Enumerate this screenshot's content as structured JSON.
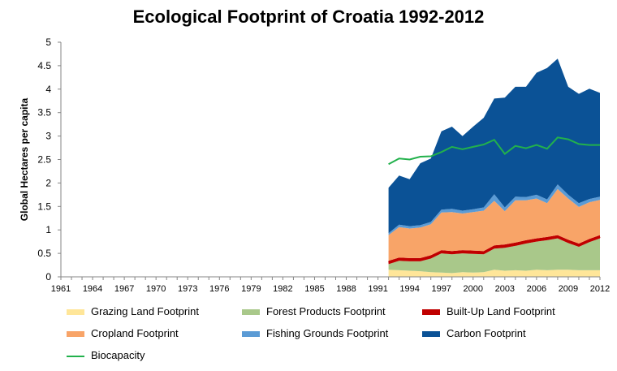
{
  "chart_data": {
    "type": "area",
    "title": "Ecological Footprint of Croatia 1992-2012",
    "xlabel": "",
    "ylabel": "Global Hectares per capita",
    "ylim": [
      0,
      5
    ],
    "yticks": [
      "0",
      "0.5",
      "1",
      "1.5",
      "2",
      "2.5",
      "3",
      "3.5",
      "4",
      "4.5",
      "5"
    ],
    "xtick_labels": [
      "1961",
      "1964",
      "1967",
      "1970",
      "1973",
      "1976",
      "1979",
      "1982",
      "1985",
      "1988",
      "1991",
      "1994",
      "1997",
      "2000",
      "2003",
      "2006",
      "2009",
      "2012"
    ],
    "xrange": [
      1961,
      2012
    ],
    "x": [
      1992,
      1993,
      1994,
      1995,
      1996,
      1997,
      1998,
      1999,
      2000,
      2001,
      2002,
      2003,
      2004,
      2005,
      2006,
      2007,
      2008,
      2009,
      2010,
      2011,
      2012
    ],
    "stacked_series": [
      {
        "name": "Grazing Land Footprint",
        "color": "#ffe699",
        "values": [
          0.15,
          0.14,
          0.13,
          0.12,
          0.1,
          0.09,
          0.08,
          0.1,
          0.09,
          0.1,
          0.15,
          0.13,
          0.14,
          0.13,
          0.15,
          0.14,
          0.15,
          0.15,
          0.14,
          0.14,
          0.14
        ]
      },
      {
        "name": "Forest Products Footprint",
        "color": "#a9c88a",
        "values": [
          0.12,
          0.2,
          0.2,
          0.21,
          0.29,
          0.41,
          0.4,
          0.4,
          0.4,
          0.38,
          0.45,
          0.49,
          0.52,
          0.58,
          0.6,
          0.64,
          0.67,
          0.57,
          0.5,
          0.6,
          0.68
        ]
      },
      {
        "name": "Built-Up Land Footprint",
        "color": "#c00000",
        "values": [
          0.07,
          0.07,
          0.07,
          0.07,
          0.07,
          0.07,
          0.07,
          0.07,
          0.07,
          0.07,
          0.07,
          0.07,
          0.07,
          0.07,
          0.07,
          0.07,
          0.07,
          0.07,
          0.07,
          0.07,
          0.07
        ]
      },
      {
        "name": "Cropland Footprint",
        "color": "#f8a468",
        "values": [
          0.55,
          0.65,
          0.63,
          0.65,
          0.66,
          0.8,
          0.83,
          0.78,
          0.82,
          0.86,
          0.95,
          0.71,
          0.9,
          0.85,
          0.85,
          0.72,
          0.98,
          0.88,
          0.78,
          0.78,
          0.75
        ]
      },
      {
        "name": "Fishing Grounds Footprint",
        "color": "#5b9bd5",
        "values": [
          0.04,
          0.05,
          0.05,
          0.05,
          0.05,
          0.06,
          0.07,
          0.06,
          0.06,
          0.07,
          0.14,
          0.08,
          0.08,
          0.07,
          0.08,
          0.08,
          0.1,
          0.08,
          0.08,
          0.07,
          0.07
        ]
      },
      {
        "name": "Carbon Footprint",
        "color": "#0b5296",
        "values": [
          0.97,
          1.05,
          1.0,
          1.32,
          1.35,
          1.67,
          1.75,
          1.59,
          1.76,
          1.91,
          2.04,
          2.34,
          2.34,
          2.35,
          2.6,
          2.8,
          2.68,
          2.3,
          2.33,
          2.35,
          2.21
        ]
      }
    ],
    "line_series": [
      {
        "name": "Biocapacity",
        "color": "#22b14c",
        "values": [
          2.4,
          2.52,
          2.5,
          2.56,
          2.57,
          2.66,
          2.77,
          2.72,
          2.77,
          2.82,
          2.92,
          2.62,
          2.79,
          2.74,
          2.81,
          2.73,
          2.97,
          2.93,
          2.83,
          2.81,
          2.81
        ]
      }
    ],
    "grid": false,
    "legend_position": "bottom"
  }
}
